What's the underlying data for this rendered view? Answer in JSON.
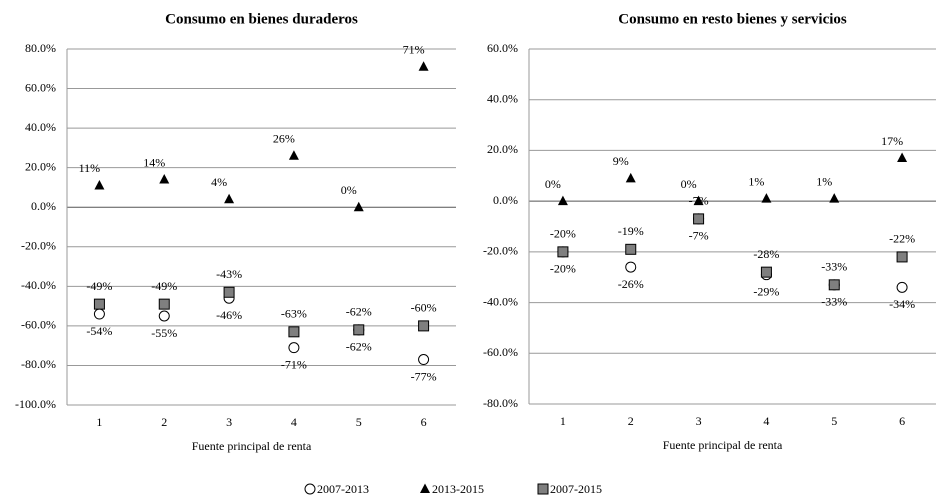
{
  "chart_data": [
    {
      "type": "scatter",
      "title": "Consumo  en bienes duraderos",
      "xlabel": "Fuente principal de renta",
      "categories": [
        "1",
        "2",
        "3",
        "4",
        "5",
        "6"
      ],
      "ylim": [
        -100,
        80
      ],
      "yticks": [
        {
          "value": -100,
          "label": "-100.0%"
        },
        {
          "value": -80,
          "label": "-80.0%"
        },
        {
          "value": -60,
          "label": "-60.0%"
        },
        {
          "value": -40,
          "label": "-40.0%"
        },
        {
          "value": -20,
          "label": "-20.0%"
        },
        {
          "value": 0,
          "label": "0.0%"
        },
        {
          "value": 20,
          "label": "20.0%"
        },
        {
          "value": 40,
          "label": "40.0%"
        },
        {
          "value": 60,
          "label": "60.0%"
        },
        {
          "value": 80,
          "label": "80.0%"
        }
      ],
      "grid": true,
      "series": [
        {
          "name": "2007-2013",
          "marker": "circle",
          "color": "#ffffff",
          "values": [
            -54,
            -55,
            -46,
            -71,
            -62,
            -77
          ],
          "value_labels": [
            "-54%",
            "-55%",
            "-46%",
            "-71%",
            "-62%",
            "-77%"
          ]
        },
        {
          "name": "2013-2015",
          "marker": "triangle",
          "color": "#000000",
          "values": [
            11,
            14,
            4,
            26,
            0,
            71
          ],
          "value_labels": [
            "11%",
            "14%",
            "4%",
            "26%",
            "0%",
            "71%"
          ]
        },
        {
          "name": "2007-2015",
          "marker": "square",
          "color": "#7f7f7f",
          "values": [
            -49,
            -49,
            -43,
            -63,
            -62,
            -60
          ],
          "value_labels": [
            "-49%",
            "-49%",
            "-43%",
            "-63%",
            "-62%",
            "-60%"
          ]
        }
      ]
    },
    {
      "type": "scatter",
      "title": "Consumo  en resto  bienes y servicios",
      "xlabel": "Fuente principal de renta",
      "categories": [
        "1",
        "2",
        "3",
        "4",
        "5",
        "6"
      ],
      "ylim": [
        -80,
        60
      ],
      "yticks": [
        {
          "value": -80,
          "label": "-80.0%"
        },
        {
          "value": -60,
          "label": "-60.0%"
        },
        {
          "value": -40,
          "label": "-40.0%"
        },
        {
          "value": -20,
          "label": "-20.0%"
        },
        {
          "value": 0,
          "label": "0.0%"
        },
        {
          "value": 20,
          "label": "20.0%"
        },
        {
          "value": 40,
          "label": "40.0%"
        },
        {
          "value": 60,
          "label": "60.0%"
        }
      ],
      "grid": true,
      "series": [
        {
          "marker": "circle",
          "color": "#ffffff",
          "values": [
            -20,
            -26,
            -7,
            -29,
            -33,
            -34
          ],
          "value_labels": [
            "-20%",
            "-26%",
            "-7%",
            "-29%",
            "-33%",
            "-34%"
          ]
        },
        {
          "marker": "triangle",
          "color": "#000000",
          "values": [
            0,
            9,
            0,
            1,
            1,
            17
          ],
          "value_labels": [
            "0%",
            "9%",
            "0%",
            "1%",
            "1%",
            "17%"
          ]
        },
        {
          "marker": "square",
          "color": "#7f7f7f",
          "values": [
            -20,
            -19,
            -7,
            -28,
            -33,
            -22
          ],
          "value_labels": [
            "-20%",
            "-19%",
            "-7%",
            "-28%",
            "-33%",
            "-22%"
          ]
        }
      ]
    }
  ]
}
